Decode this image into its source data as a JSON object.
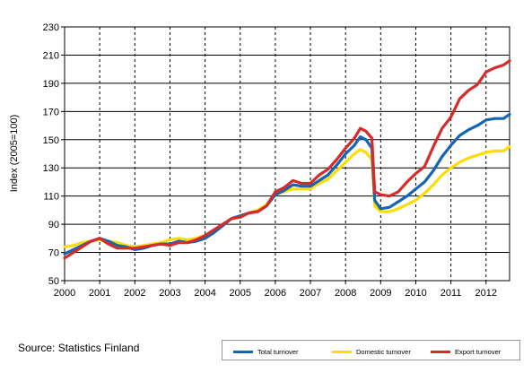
{
  "chart_data": {
    "type": "line",
    "title": "",
    "xlabel": "",
    "ylabel": "Index (2005=100)",
    "ylim": [
      50,
      230
    ],
    "yticks": [
      50,
      70,
      90,
      110,
      130,
      150,
      170,
      190,
      210,
      230
    ],
    "xlim": [
      2000,
      2012.67
    ],
    "xticks": [
      "2000",
      "2001",
      "2002",
      "2003",
      "2004",
      "2005",
      "2006",
      "2007",
      "2008",
      "2009",
      "2010",
      "2011",
      "2012"
    ],
    "grid": "dashed vertical at year boundaries, solid horizontal",
    "legend_position": "bottom-right",
    "series": [
      {
        "name": "Total turnover",
        "color": "#1565b5",
        "points": [
          [
            2000,
            69
          ],
          [
            2000.25,
            72
          ],
          [
            2000.5,
            75
          ],
          [
            2000.75,
            78
          ],
          [
            2001,
            80
          ],
          [
            2001.25,
            78
          ],
          [
            2001.5,
            75
          ],
          [
            2001.75,
            74
          ],
          [
            2002,
            72
          ],
          [
            2002.25,
            73
          ],
          [
            2002.5,
            75
          ],
          [
            2002.75,
            76
          ],
          [
            2003,
            76
          ],
          [
            2003.25,
            78
          ],
          [
            2003.5,
            77
          ],
          [
            2003.75,
            78
          ],
          [
            2004,
            80
          ],
          [
            2004.25,
            84
          ],
          [
            2004.5,
            89
          ],
          [
            2004.75,
            94
          ],
          [
            2005,
            96
          ],
          [
            2005.25,
            98
          ],
          [
            2005.5,
            99
          ],
          [
            2005.75,
            103
          ],
          [
            2006,
            111
          ],
          [
            2006.25,
            114
          ],
          [
            2006.5,
            118
          ],
          [
            2006.75,
            117
          ],
          [
            2007,
            117
          ],
          [
            2007.25,
            121
          ],
          [
            2007.5,
            125
          ],
          [
            2007.75,
            132
          ],
          [
            2008,
            140
          ],
          [
            2008.25,
            146
          ],
          [
            2008.42,
            152
          ],
          [
            2008.58,
            150
          ],
          [
            2008.75,
            144
          ],
          [
            2008.83,
            107
          ],
          [
            2009,
            101
          ],
          [
            2009.25,
            102
          ],
          [
            2009.5,
            106
          ],
          [
            2009.75,
            110
          ],
          [
            2010,
            115
          ],
          [
            2010.25,
            120
          ],
          [
            2010.5,
            128
          ],
          [
            2010.75,
            138
          ],
          [
            2011,
            146
          ],
          [
            2011.25,
            153
          ],
          [
            2011.5,
            157
          ],
          [
            2011.75,
            160
          ],
          [
            2012,
            164
          ],
          [
            2012.25,
            165
          ],
          [
            2012.5,
            165
          ],
          [
            2012.67,
            168
          ]
        ]
      },
      {
        "name": "Domestic turnover",
        "color": "#ffdd00",
        "points": [
          [
            2000,
            74
          ],
          [
            2000.25,
            75
          ],
          [
            2000.5,
            77
          ],
          [
            2000.75,
            78
          ],
          [
            2001,
            79
          ],
          [
            2001.25,
            78
          ],
          [
            2001.5,
            77
          ],
          [
            2001.75,
            75
          ],
          [
            2002,
            74
          ],
          [
            2002.25,
            75
          ],
          [
            2002.5,
            76
          ],
          [
            2002.75,
            77
          ],
          [
            2003,
            79
          ],
          [
            2003.25,
            80
          ],
          [
            2003.5,
            79
          ],
          [
            2003.75,
            80
          ],
          [
            2004,
            82
          ],
          [
            2004.25,
            85
          ],
          [
            2004.5,
            89
          ],
          [
            2004.75,
            94
          ],
          [
            2005,
            96
          ],
          [
            2005.25,
            98
          ],
          [
            2005.5,
            100
          ],
          [
            2005.75,
            104
          ],
          [
            2006,
            111
          ],
          [
            2006.25,
            113
          ],
          [
            2006.5,
            115
          ],
          [
            2006.75,
            115
          ],
          [
            2007,
            115
          ],
          [
            2007.25,
            119
          ],
          [
            2007.5,
            122
          ],
          [
            2007.75,
            128
          ],
          [
            2008,
            134
          ],
          [
            2008.25,
            140
          ],
          [
            2008.42,
            143
          ],
          [
            2008.58,
            141
          ],
          [
            2008.75,
            136
          ],
          [
            2008.83,
            103
          ],
          [
            2009,
            99
          ],
          [
            2009.25,
            99
          ],
          [
            2009.5,
            101
          ],
          [
            2009.75,
            104
          ],
          [
            2010,
            107
          ],
          [
            2010.25,
            112
          ],
          [
            2010.5,
            118
          ],
          [
            2010.75,
            125
          ],
          [
            2011,
            130
          ],
          [
            2011.25,
            134
          ],
          [
            2011.5,
            137
          ],
          [
            2011.75,
            139
          ],
          [
            2012,
            141
          ],
          [
            2012.25,
            142
          ],
          [
            2012.5,
            142
          ],
          [
            2012.67,
            145
          ]
        ]
      },
      {
        "name": "Export turnover",
        "color": "#d62b2b",
        "points": [
          [
            2000,
            66
          ],
          [
            2000.25,
            70
          ],
          [
            2000.5,
            74
          ],
          [
            2000.75,
            78
          ],
          [
            2001,
            80
          ],
          [
            2001.25,
            76
          ],
          [
            2001.5,
            73
          ],
          [
            2001.75,
            73
          ],
          [
            2002,
            73
          ],
          [
            2002.25,
            74
          ],
          [
            2002.5,
            75
          ],
          [
            2002.75,
            76
          ],
          [
            2003,
            75
          ],
          [
            2003.25,
            77
          ],
          [
            2003.5,
            77
          ],
          [
            2003.75,
            79
          ],
          [
            2004,
            82
          ],
          [
            2004.25,
            86
          ],
          [
            2004.5,
            90
          ],
          [
            2004.75,
            94
          ],
          [
            2005,
            95
          ],
          [
            2005.25,
            98
          ],
          [
            2005.5,
            99
          ],
          [
            2005.75,
            103
          ],
          [
            2006,
            113
          ],
          [
            2006.25,
            116
          ],
          [
            2006.5,
            121
          ],
          [
            2006.75,
            119
          ],
          [
            2007,
            119
          ],
          [
            2007.25,
            125
          ],
          [
            2007.5,
            129
          ],
          [
            2007.75,
            136
          ],
          [
            2008,
            144
          ],
          [
            2008.25,
            151
          ],
          [
            2008.42,
            158
          ],
          [
            2008.58,
            156
          ],
          [
            2008.75,
            151
          ],
          [
            2008.83,
            113
          ],
          [
            2009,
            111
          ],
          [
            2009.25,
            110
          ],
          [
            2009.5,
            113
          ],
          [
            2009.75,
            120
          ],
          [
            2010,
            126
          ],
          [
            2010.25,
            131
          ],
          [
            2010.5,
            145
          ],
          [
            2010.75,
            158
          ],
          [
            2011,
            166
          ],
          [
            2011.25,
            179
          ],
          [
            2011.5,
            185
          ],
          [
            2011.75,
            189
          ],
          [
            2012,
            198
          ],
          [
            2012.25,
            201
          ],
          [
            2012.5,
            203
          ],
          [
            2012.67,
            206
          ]
        ]
      }
    ]
  },
  "source_text": "Source: Statistics Finland"
}
